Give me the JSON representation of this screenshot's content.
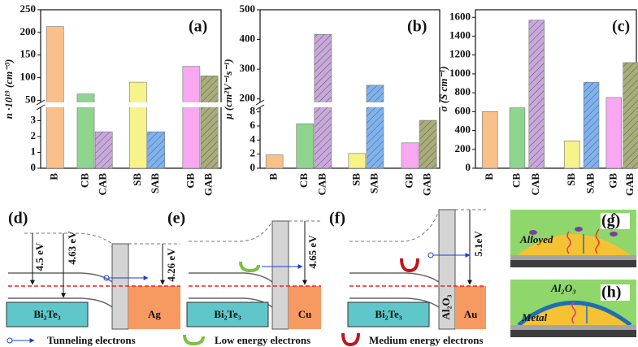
{
  "chart_data": [
    {
      "type": "bar",
      "panel_label": "(a)",
      "ylabel": "n ·10¹⁹ (cm⁻³)",
      "categories": [
        "B",
        "CB",
        "CAB",
        "SB",
        "SAB",
        "GB",
        "GAB"
      ],
      "values": [
        213,
        64,
        2.3,
        90,
        2.3,
        125,
        104
      ],
      "colors": [
        "#f9c08a",
        "#8fd48f",
        "#c9a8dd",
        "#f6f38a",
        "#7fb3f0",
        "#f7a8f0",
        "#a9ad7a"
      ],
      "hatch": [
        false,
        false,
        true,
        false,
        true,
        false,
        true
      ],
      "ylim": [
        0,
        250
      ],
      "ybreak": [
        4,
        40
      ],
      "yticks": [
        0,
        1,
        2,
        3,
        50,
        100,
        150,
        200,
        250
      ]
    },
    {
      "type": "bar",
      "panel_label": "(b)",
      "ylabel": "μ (cm²V⁻¹s⁻¹)",
      "categories": [
        "B",
        "CB",
        "CAB",
        "SB",
        "SAB",
        "GB",
        "GAB"
      ],
      "values": [
        1.9,
        6.3,
        417,
        2.1,
        246,
        3.6,
        6.8
      ],
      "colors": [
        "#f9c08a",
        "#8fd48f",
        "#c9a8dd",
        "#f6f38a",
        "#7fb3f0",
        "#f7a8f0",
        "#a9ad7a"
      ],
      "hatch": [
        false,
        false,
        true,
        false,
        true,
        false,
        true
      ],
      "ylim": [
        0,
        500
      ],
      "ybreak": [
        9,
        180
      ],
      "yticks": [
        0,
        2,
        4,
        6,
        8,
        200,
        300,
        400,
        500
      ]
    },
    {
      "type": "bar",
      "panel_label": "(c)",
      "ylabel": "σ (S cm⁻¹)",
      "categories": [
        "B",
        "CB",
        "CAB",
        "SB",
        "SAB",
        "GB",
        "GAB"
      ],
      "values": [
        600,
        640,
        1570,
        290,
        910,
        750,
        1120
      ],
      "colors": [
        "#f9c08a",
        "#8fd48f",
        "#c9a8dd",
        "#f6f38a",
        "#7fb3f0",
        "#f7a8f0",
        "#a9ad7a"
      ],
      "hatch": [
        false,
        false,
        true,
        false,
        true,
        false,
        true
      ],
      "ylim": [
        0,
        1680
      ],
      "yticks": [
        0,
        200,
        400,
        600,
        800,
        1000,
        1200,
        1400,
        1600
      ]
    }
  ],
  "panels": {
    "d": {
      "label": "(d)",
      "wf_left": "4.5 eV",
      "wf_right": "4.63 eV",
      "wf_metal": "4.26 eV",
      "semiconductor": "Bi₂Te₃",
      "metal": "Ag"
    },
    "e": {
      "label": "(e)",
      "wf_metal": "4.65 eV",
      "semiconductor": "Bi₂Te₃",
      "metal": "Cu"
    },
    "f": {
      "label": "(f)",
      "wf_metal": "5.1eV",
      "oxide": "Al₂O₃",
      "semiconductor": "Bi₂Te₃",
      "metal": "Au"
    },
    "g": {
      "label": "(g)",
      "region": "Alloyed",
      "electron": "e"
    },
    "h": {
      "label": "(h)",
      "oxide": "Al₂O₃",
      "region": "Metal"
    }
  },
  "legend": [
    "Tunneling electrons",
    "Low energy electrons",
    "Medium energy electrons"
  ]
}
